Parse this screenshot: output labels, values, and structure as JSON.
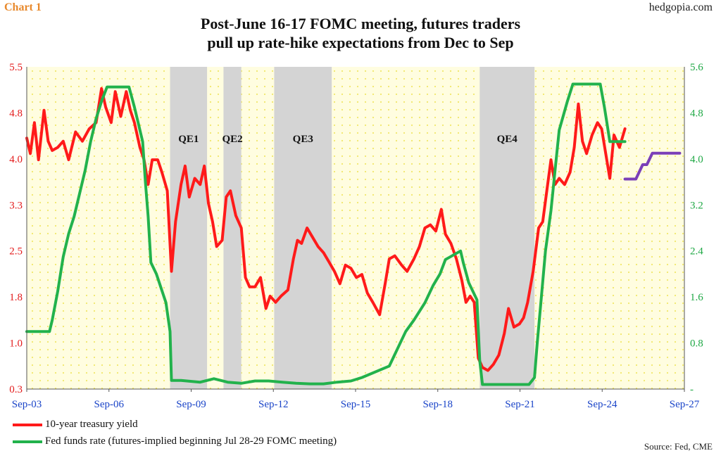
{
  "header": {
    "chart_label": "Chart 1",
    "site": "hedgopia.com",
    "title_line1": "Post-June 16-17 FOMC meeting, futures traders",
    "title_line2": "pull up rate-hike expectations from Dec to Sep"
  },
  "source": "Source: Fed, CME",
  "colors": {
    "treasury": "#ff1a1a",
    "fedfunds": "#22b24c",
    "implied": "#7a3fb8",
    "shade": "#d4d4d4",
    "plot_bg": "#fffde0",
    "dots": "#f1e76a"
  },
  "chart_data": {
    "type": "line",
    "x_ticks": [
      "Sep-03",
      "Sep-06",
      "Sep-09",
      "Sep-12",
      "Sep-15",
      "Sep-18",
      "Sep-21",
      "Sep-24",
      "Sep-27"
    ],
    "x_range": [
      2003.67,
      2027.67
    ],
    "left_axis": {
      "ticks": [
        "0.3",
        "1.0",
        "1.8",
        "2.5",
        "3.3",
        "4.0",
        "4.8",
        "5.5"
      ],
      "ylim": [
        0.3,
        5.5
      ]
    },
    "right_axis": {
      "ticks": [
        "-",
        "0.8",
        "1.6",
        "2.4",
        "3.2",
        "4.0",
        "4.8",
        "5.6"
      ],
      "ylim": [
        0,
        5.6
      ]
    },
    "shaded_regions": [
      {
        "label": "QE1",
        "start": 2008.9,
        "end": 2010.25
      },
      {
        "label": "QE2",
        "start": 2010.85,
        "end": 2011.5
      },
      {
        "label": "QE3",
        "start": 2012.7,
        "end": 2014.8
      },
      {
        "label": "QE4",
        "start": 2020.2,
        "end": 2022.2
      }
    ],
    "legend": [
      {
        "series": "treasury",
        "label": "10-year treasury yield"
      },
      {
        "series": "fedfunds",
        "label": "Fed funds rate (futures-implied beginning Jul 28-29 FOMC meeting)"
      }
    ],
    "series": [
      {
        "name": "10-year treasury yield",
        "axis": "left",
        "x": [
          2003.67,
          2003.8,
          2003.95,
          2004.1,
          2004.3,
          2004.45,
          2004.6,
          2004.8,
          2005.0,
          2005.2,
          2005.45,
          2005.7,
          2005.95,
          2006.2,
          2006.4,
          2006.55,
          2006.75,
          2006.9,
          2007.1,
          2007.3,
          2007.45,
          2007.6,
          2007.8,
          2007.95,
          2008.1,
          2008.25,
          2008.45,
          2008.6,
          2008.8,
          2008.95,
          2009.1,
          2009.3,
          2009.45,
          2009.6,
          2009.8,
          2010.0,
          2010.15,
          2010.3,
          2010.45,
          2010.6,
          2010.8,
          2010.95,
          2011.1,
          2011.3,
          2011.5,
          2011.65,
          2011.8,
          2012.0,
          2012.2,
          2012.4,
          2012.55,
          2012.75,
          2012.95,
          2013.2,
          2013.4,
          2013.55,
          2013.7,
          2013.9,
          2014.1,
          2014.3,
          2014.5,
          2014.7,
          2014.9,
          2015.1,
          2015.3,
          2015.5,
          2015.7,
          2015.9,
          2016.1,
          2016.3,
          2016.55,
          2016.75,
          2016.9,
          2017.1,
          2017.35,
          2017.55,
          2017.8,
          2018.0,
          2018.2,
          2018.4,
          2018.6,
          2018.8,
          2018.95,
          2019.15,
          2019.35,
          2019.55,
          2019.7,
          2019.85,
          2020.0,
          2020.15,
          2020.3,
          2020.5,
          2020.7,
          2020.9,
          2021.1,
          2021.25,
          2021.45,
          2021.65,
          2021.8,
          2021.95,
          2022.15,
          2022.35,
          2022.5,
          2022.65,
          2022.8,
          2022.95,
          2023.1,
          2023.3,
          2023.5,
          2023.65,
          2023.8,
          2023.95,
          2024.1,
          2024.3,
          2024.5,
          2024.65,
          2024.8,
          2024.95,
          2025.1,
          2025.3,
          2025.5
        ],
        "values": [
          4.35,
          4.1,
          4.6,
          4.0,
          4.8,
          4.3,
          4.15,
          4.2,
          4.3,
          4.0,
          4.45,
          4.3,
          4.5,
          4.6,
          5.15,
          4.85,
          4.6,
          5.1,
          4.7,
          5.1,
          4.8,
          4.6,
          4.2,
          4.0,
          3.6,
          4.0,
          4.0,
          3.8,
          3.5,
          2.2,
          3.0,
          3.6,
          3.9,
          3.4,
          3.7,
          3.6,
          3.9,
          3.3,
          3.0,
          2.6,
          2.7,
          3.4,
          3.5,
          3.1,
          2.9,
          2.1,
          1.95,
          1.95,
          2.1,
          1.6,
          1.8,
          1.7,
          1.8,
          1.9,
          2.4,
          2.7,
          2.65,
          2.9,
          2.75,
          2.6,
          2.5,
          2.35,
          2.2,
          2.0,
          2.3,
          2.25,
          2.1,
          2.15,
          1.85,
          1.7,
          1.5,
          2.0,
          2.4,
          2.45,
          2.3,
          2.2,
          2.4,
          2.6,
          2.9,
          2.95,
          2.85,
          3.2,
          2.8,
          2.65,
          2.4,
          2.05,
          1.7,
          1.8,
          1.7,
          0.8,
          0.65,
          0.6,
          0.7,
          0.85,
          1.2,
          1.6,
          1.3,
          1.35,
          1.45,
          1.7,
          2.2,
          2.9,
          3.0,
          3.5,
          4.0,
          3.6,
          3.7,
          3.6,
          3.8,
          4.2,
          4.9,
          4.3,
          4.1,
          4.4,
          4.6,
          4.5,
          4.1,
          3.7,
          4.4,
          4.2,
          4.5
        ],
        "color_key": "treasury"
      },
      {
        "name": "Fed funds rate",
        "axis": "right",
        "x": [
          2003.67,
          2004.5,
          2004.6,
          2004.8,
          2005.0,
          2005.2,
          2005.4,
          2005.6,
          2005.8,
          2006.0,
          2006.2,
          2006.4,
          2006.6,
          2007.4,
          2007.6,
          2007.75,
          2007.9,
          2008.0,
          2008.1,
          2008.2,
          2008.4,
          2008.75,
          2008.9,
          2008.95,
          2009.3,
          2010.0,
          2010.5,
          2011.0,
          2011.5,
          2012.0,
          2012.5,
          2013.0,
          2013.5,
          2014.0,
          2014.5,
          2015.0,
          2015.5,
          2015.9,
          2016.9,
          2017.2,
          2017.5,
          2017.8,
          2018.2,
          2018.5,
          2018.75,
          2018.95,
          2019.5,
          2019.6,
          2019.8,
          2020.1,
          2020.2,
          2020.3,
          2021.0,
          2022.0,
          2022.2,
          2022.3,
          2022.45,
          2022.6,
          2022.8,
          2022.95,
          2023.1,
          2023.4,
          2023.6,
          2024.6,
          2024.75,
          2024.85,
          2024.95,
          2025.5
        ],
        "values": [
          1.0,
          1.0,
          1.2,
          1.7,
          2.3,
          2.7,
          3.0,
          3.4,
          3.8,
          4.3,
          4.7,
          5.0,
          5.25,
          5.25,
          4.9,
          4.6,
          4.3,
          3.6,
          3.0,
          2.2,
          2.0,
          1.5,
          1.0,
          0.15,
          0.15,
          0.12,
          0.18,
          0.12,
          0.1,
          0.14,
          0.14,
          0.12,
          0.1,
          0.09,
          0.09,
          0.12,
          0.14,
          0.2,
          0.4,
          0.7,
          1.0,
          1.2,
          1.5,
          1.8,
          2.0,
          2.25,
          2.4,
          2.2,
          1.85,
          1.55,
          0.5,
          0.08,
          0.08,
          0.08,
          0.2,
          0.8,
          1.6,
          2.4,
          3.1,
          3.8,
          4.5,
          5.0,
          5.3,
          5.3,
          4.9,
          4.6,
          4.3,
          4.3
        ],
        "color_key": "fedfunds"
      },
      {
        "name": "Futures-implied",
        "axis": "right",
        "x": [
          2025.5,
          2025.9,
          2026.15,
          2026.3,
          2026.5,
          2027.5
        ],
        "values": [
          3.65,
          3.65,
          3.9,
          3.9,
          4.1,
          4.1
        ],
        "color_key": "implied"
      }
    ]
  }
}
